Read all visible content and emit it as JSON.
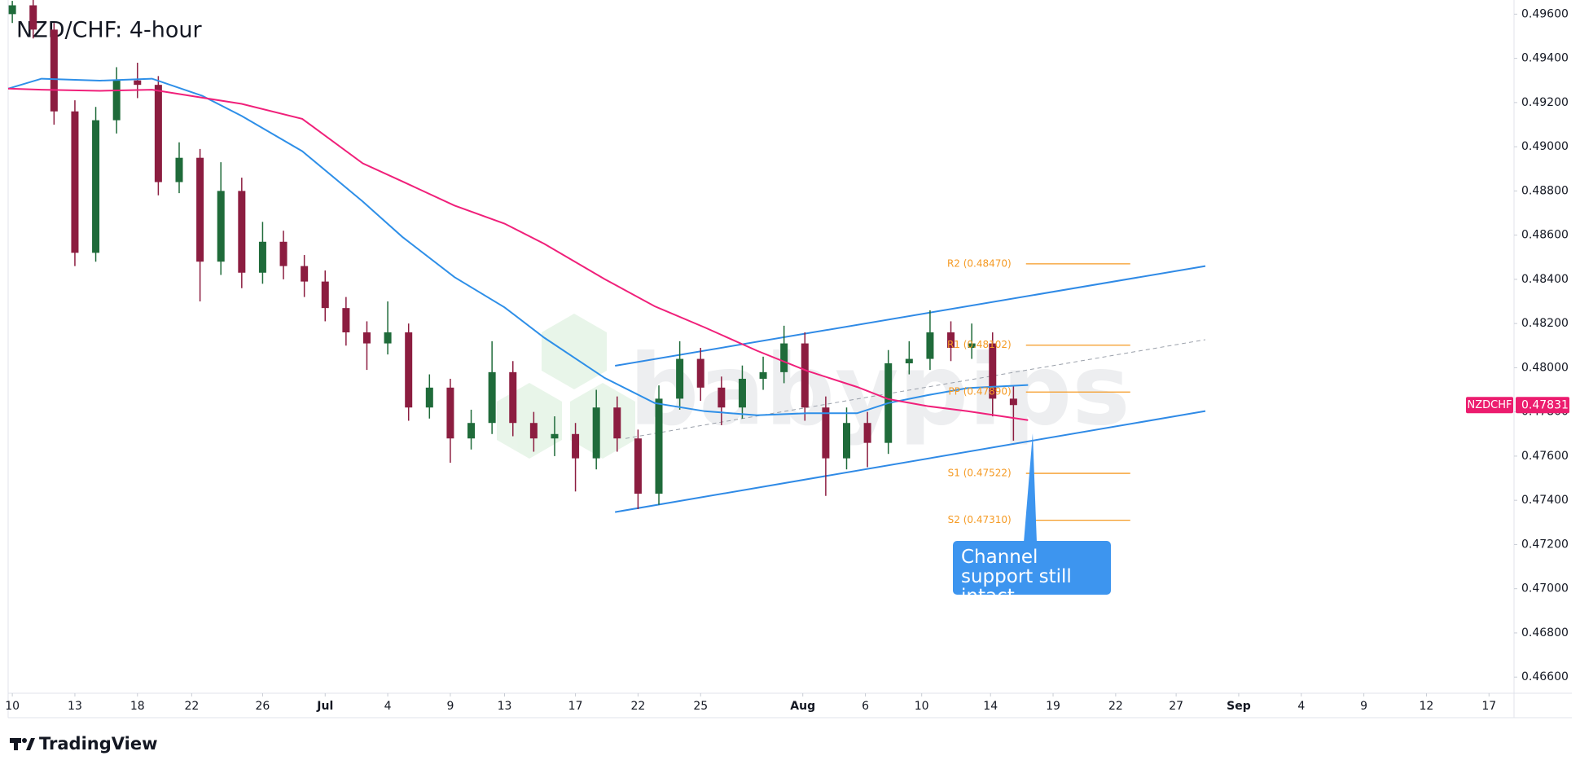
{
  "chart_data": {
    "type": "candlestick",
    "title": "NZD/CHF: 4-hour",
    "watermark": "babypips",
    "footer": "TradingView",
    "grid": false,
    "up_color": "#1f6b3a",
    "down_color": "#8c1d40",
    "xlim": [
      -0.2,
      72.0
    ],
    "ylim": [
      0.46527,
      0.49664
    ],
    "xticks": [
      {
        "value": 0,
        "label": "10"
      },
      {
        "value": 3.0,
        "label": "13"
      },
      {
        "value": 6.0,
        "label": "18"
      },
      {
        "value": 8.6,
        "label": "22"
      },
      {
        "value": 12.0,
        "label": "26"
      },
      {
        "value": 15.0,
        "label": "Jul"
      },
      {
        "value": 18.0,
        "label": "4"
      },
      {
        "value": 21.0,
        "label": "9"
      },
      {
        "value": 23.6,
        "label": "13"
      },
      {
        "value": 27.0,
        "label": "17"
      },
      {
        "value": 30.0,
        "label": "22"
      },
      {
        "value": 33.0,
        "label": "25"
      },
      {
        "value": 37.9,
        "label": "Aug"
      },
      {
        "value": 40.9,
        "label": "6"
      },
      {
        "value": 43.6,
        "label": "10"
      },
      {
        "value": 46.9,
        "label": "14"
      },
      {
        "value": 49.9,
        "label": "19"
      },
      {
        "value": 52.9,
        "label": "22"
      },
      {
        "value": 55.8,
        "label": "27"
      },
      {
        "value": 58.8,
        "label": "Sep"
      },
      {
        "value": 61.8,
        "label": "4"
      },
      {
        "value": 64.8,
        "label": "9"
      },
      {
        "value": 67.8,
        "label": "12"
      },
      {
        "value": 70.8,
        "label": "17"
      }
    ],
    "yticks": [
      {
        "value": 0.496,
        "label": "0.49600"
      },
      {
        "value": 0.494,
        "label": "0.49400"
      },
      {
        "value": 0.492,
        "label": "0.49200"
      },
      {
        "value": 0.49,
        "label": "0.49000"
      },
      {
        "value": 0.488,
        "label": "0.48800"
      },
      {
        "value": 0.486,
        "label": "0.48600"
      },
      {
        "value": 0.484,
        "label": "0.48400"
      },
      {
        "value": 0.482,
        "label": "0.48200"
      },
      {
        "value": 0.48,
        "label": "0.48000"
      },
      {
        "value": 0.478,
        "label": "0.47800"
      },
      {
        "value": 0.476,
        "label": "0.47600"
      },
      {
        "value": 0.474,
        "label": "0.47400"
      },
      {
        "value": 0.472,
        "label": "0.47200"
      },
      {
        "value": 0.47,
        "label": "0.47000"
      },
      {
        "value": 0.468,
        "label": "0.46800"
      },
      {
        "value": 0.466,
        "label": "0.46600"
      }
    ],
    "x": [
      0,
      1,
      2,
      3,
      4,
      5,
      6,
      7,
      8,
      9,
      10,
      11,
      12,
      13,
      14,
      15,
      16,
      17,
      18,
      19,
      20,
      21,
      22,
      23,
      24,
      25,
      26,
      27,
      28,
      29,
      30,
      31,
      32,
      33,
      34,
      35,
      36,
      37,
      38,
      39,
      40,
      41,
      42,
      43,
      44,
      45,
      46,
      47,
      48
    ],
    "open": [
      0.496,
      0.4964,
      0.4953,
      0.4916,
      0.4852,
      0.4912,
      0.493,
      0.4928,
      0.4884,
      0.4895,
      0.4848,
      0.488,
      0.4843,
      0.4857,
      0.4846,
      0.4839,
      0.4827,
      0.4816,
      0.4811,
      0.4816,
      0.4782,
      0.4791,
      0.4768,
      0.4775,
      0.4798,
      0.4775,
      0.4768,
      0.477,
      0.4759,
      0.4782,
      0.4768,
      0.4743,
      0.4786,
      0.4804,
      0.4791,
      0.4782,
      0.4795,
      0.4798,
      0.4811,
      0.4782,
      0.4759,
      0.4775,
      0.4766,
      0.4802,
      0.4804,
      0.4816,
      0.4809,
      0.4811,
      0.4786
    ],
    "high": [
      0.4966,
      0.4967,
      0.4956,
      0.4921,
      0.4918,
      0.4936,
      0.4938,
      0.4932,
      0.4902,
      0.4899,
      0.4893,
      0.4886,
      0.4866,
      0.4862,
      0.4851,
      0.4844,
      0.4832,
      0.4821,
      0.483,
      0.482,
      0.4797,
      0.4795,
      0.4781,
      0.4812,
      0.4803,
      0.478,
      0.4778,
      0.4775,
      0.479,
      0.4787,
      0.4772,
      0.4792,
      0.4812,
      0.4809,
      0.4796,
      0.4801,
      0.4805,
      0.4819,
      0.4816,
      0.4787,
      0.4782,
      0.478,
      0.4808,
      0.4812,
      0.4826,
      0.4821,
      0.482,
      0.4816,
      0.4792
    ],
    "low": [
      0.4956,
      0.4949,
      0.491,
      0.4846,
      0.4848,
      0.4906,
      0.4922,
      0.4878,
      0.4879,
      0.483,
      0.4842,
      0.4836,
      0.4838,
      0.484,
      0.4832,
      0.4821,
      0.481,
      0.4799,
      0.4806,
      0.4776,
      0.4777,
      0.4757,
      0.4763,
      0.477,
      0.4769,
      0.4762,
      0.476,
      0.4744,
      0.4754,
      0.4762,
      0.4736,
      0.4738,
      0.4781,
      0.4785,
      0.4774,
      0.4777,
      0.479,
      0.4793,
      0.4776,
      0.4742,
      0.4754,
      0.4755,
      0.4761,
      0.4797,
      0.4799,
      0.4803,
      0.4804,
      0.4778,
      0.4767
    ],
    "close": [
      0.4964,
      0.4953,
      0.4916,
      0.4852,
      0.4912,
      0.493,
      0.4928,
      0.4884,
      0.4895,
      0.4848,
      0.488,
      0.4843,
      0.4857,
      0.4846,
      0.4839,
      0.4827,
      0.4816,
      0.4811,
      0.4816,
      0.4782,
      0.4791,
      0.4768,
      0.4775,
      0.4798,
      0.4775,
      0.4768,
      0.477,
      0.4759,
      0.4782,
      0.4768,
      0.4743,
      0.4786,
      0.4804,
      0.4791,
      0.4782,
      0.4795,
      0.4798,
      0.4811,
      0.4782,
      0.4759,
      0.4775,
      0.4766,
      0.4802,
      0.4804,
      0.4816,
      0.4809,
      0.4811,
      0.4786,
      0.47831
    ],
    "moving_averages": [
      {
        "color": "#2e8fe8",
        "x": [
          -0.2,
          1.4,
          4.2,
          6.7,
          9.1,
          11.0,
          13.9,
          16.8,
          18.7,
          21.2,
          23.6,
          25.5,
          28.4,
          30.8,
          33.2,
          35.7,
          38.1,
          40.5,
          42.0,
          43.9,
          45.8,
          48.7
        ],
        "values": [
          0.49263,
          0.49308,
          0.49299,
          0.49308,
          0.49231,
          0.49139,
          0.4898,
          0.48752,
          0.48592,
          0.4841,
          0.48273,
          0.48136,
          0.47954,
          0.4784,
          0.47803,
          0.47785,
          0.47794,
          0.47794,
          0.4784,
          0.47876,
          0.47908,
          0.47922
        ]
      },
      {
        "color": "#f0207a",
        "x": [
          -0.2,
          1.4,
          4.2,
          6.7,
          9.1,
          11.0,
          13.9,
          16.8,
          18.7,
          21.2,
          23.6,
          25.5,
          28.4,
          30.8,
          33.2,
          35.7,
          38.1,
          40.5,
          42.0,
          43.9,
          45.8,
          48.7
        ],
        "values": [
          0.49263,
          0.49258,
          0.49253,
          0.49258,
          0.49222,
          0.49194,
          0.49126,
          0.48925,
          0.48843,
          0.48734,
          0.48652,
          0.48561,
          0.48401,
          0.48278,
          0.48182,
          0.48077,
          0.47986,
          0.47913,
          0.47858,
          0.47826,
          0.47803,
          0.47763
        ]
      }
    ],
    "channel": {
      "color": "#2f8ae6",
      "upper": {
        "x": [
          28.9,
          57.2
        ],
        "values": [
          0.48009,
          0.4846
        ]
      },
      "lower": {
        "x": [
          28.9,
          57.2
        ],
        "values": [
          0.47347,
          0.47804
        ]
      },
      "middle": {
        "x": [
          29.4,
          57.2
        ],
        "values": [
          0.4768,
          0.48127
        ],
        "dashed": true
      }
    },
    "pivot_color": "#f59a23",
    "pivots": [
      {
        "label": "R2 (0.48470)",
        "value": 0.4847,
        "x": [
          48.6,
          53.6
        ]
      },
      {
        "label": "R1 (0.48102)",
        "value": 0.48102,
        "x": [
          48.6,
          53.6
        ]
      },
      {
        "label": "PP (0.47890)",
        "value": 0.4789,
        "x": [
          48.6,
          53.6
        ]
      },
      {
        "label": "S1 (0.47522)",
        "value": 0.47522,
        "x": [
          48.6,
          53.6
        ]
      },
      {
        "label": "S2 (0.47310)",
        "value": 0.4731,
        "x": [
          48.6,
          53.6
        ]
      }
    ],
    "annotation": {
      "text": "Channel support still intact",
      "color": "#3d95ef"
    },
    "price_tag": {
      "symbol": "NZDCHF",
      "value": 0.47831,
      "color": "#ec1c6e"
    }
  }
}
